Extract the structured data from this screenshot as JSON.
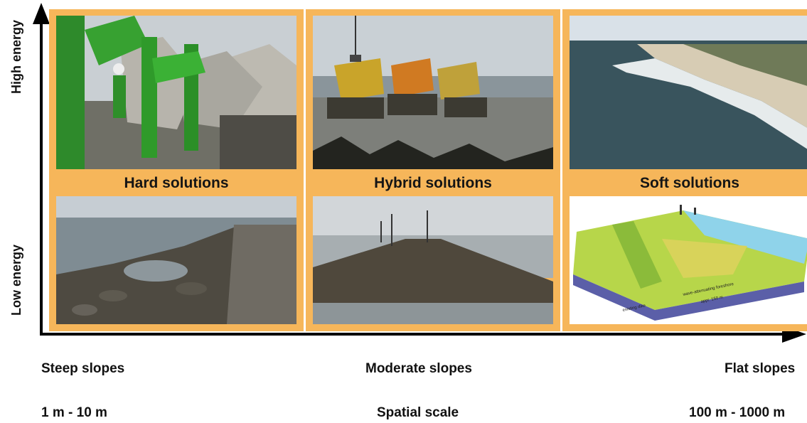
{
  "axes": {
    "y_top_label": "High energy",
    "y_bottom_label": "Low energy"
  },
  "panels": [
    {
      "title": "Hard solutions",
      "top_photo": "concrete-armour-units-photo",
      "bottom_photo": "rock-revetment-photo"
    },
    {
      "title": "Hybrid solutions",
      "top_photo": "dump-trucks-rock-placement-photo",
      "bottom_photo": "oyster-reef-tidal-flat-photo"
    },
    {
      "title": "Soft solutions",
      "top_photo": "aerial-sandy-coast-photo",
      "bottom_photo": "foreshore-cross-section-diagram"
    }
  ],
  "inset_diagram": {
    "label_a": "existing dike",
    "label_b": "wave-attenuating foreshore",
    "label_c": "appr. 150 m"
  },
  "x_labels": {
    "slope_left": "Steep slopes",
    "slope_center": "Moderate slopes",
    "slope_right": "Flat slopes",
    "scale_left": "1 m - 10 m",
    "scale_center": "Spatial scale",
    "scale_right": "100 m - 1000 m"
  },
  "colors": {
    "panel_frame": "#f6b65a",
    "axis": "#000000"
  }
}
